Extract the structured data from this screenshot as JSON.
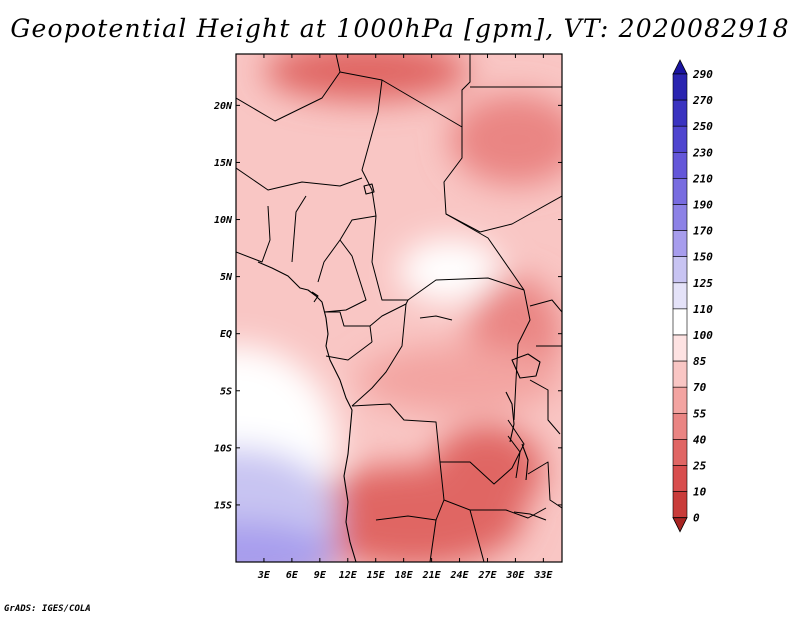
{
  "title": "Geopotential Height at 1000hPa [gpm], VT: 2020082918",
  "credit": "GrADS: IGES/COLA",
  "chart_data": {
    "type": "heatmap",
    "title": "Geopotential Height at 1000hPa [gpm], VT: 2020082918",
    "variable": "Geopotential Height",
    "level": "1000hPa",
    "units": "gpm",
    "valid_time": "2020082918",
    "x_range": [
      0,
      35
    ],
    "y_range": [
      -20,
      24.5
    ],
    "x_ticks": [
      3,
      6,
      9,
      12,
      15,
      18,
      21,
      24,
      27,
      30,
      33
    ],
    "x_tick_labels": [
      "3E",
      "6E",
      "9E",
      "12E",
      "15E",
      "18E",
      "21E",
      "24E",
      "27E",
      "30E",
      "33E"
    ],
    "y_ticks": [
      20,
      15,
      10,
      5,
      0,
      -5,
      -10,
      -15
    ],
    "y_tick_labels": [
      "20N",
      "15N",
      "10N",
      "5N",
      "EQ",
      "5S",
      "10S",
      "15S"
    ],
    "colorbar_levels": [
      290,
      270,
      250,
      230,
      210,
      190,
      170,
      150,
      125,
      110,
      100,
      85,
      70,
      55,
      40,
      25,
      10,
      0
    ],
    "colorbar_colors": [
      "#1a14a0",
      "#2a24b0",
      "#3a33c0",
      "#4f45cf",
      "#6457d9",
      "#786ce0",
      "#8d82e6",
      "#a79ded",
      "#c8c4f2",
      "#e4e2f8",
      "#ffffff",
      "#fde2e2",
      "#f9c6c4",
      "#f3a4a1",
      "#ea8583",
      "#e06664",
      "#d84e4e",
      "#c93c3a",
      "#a82422"
    ],
    "fields": [
      {
        "cx": 14,
        "cy": 23,
        "rx": 11,
        "ry": 2.6,
        "value": 30
      },
      {
        "cx": 30,
        "cy": 17,
        "rx": 7,
        "ry": 4,
        "value": 45
      },
      {
        "cx": 23,
        "cy": 5.5,
        "rx": 5.5,
        "ry": 2.8,
        "value": 100
      },
      {
        "cx": 30,
        "cy": 0,
        "rx": 5,
        "ry": 5,
        "value": 48
      },
      {
        "cx": 24,
        "cy": -4,
        "rx": 11,
        "ry": 3,
        "value": 65
      },
      {
        "cx": 19,
        "cy": -16,
        "rx": 12,
        "ry": 4.5,
        "value": 35
      },
      {
        "cx": 27,
        "cy": -12,
        "rx": 6,
        "ry": 4,
        "value": 38
      },
      {
        "cx": 0,
        "cy": -10,
        "rx": 11,
        "ry": 9,
        "value": 108
      },
      {
        "cx": 0,
        "cy": -16,
        "rx": 11,
        "ry": 6,
        "value": 125
      },
      {
        "cx": 0,
        "cy": -19.5,
        "rx": 11,
        "ry": 3,
        "value": 150
      }
    ]
  }
}
